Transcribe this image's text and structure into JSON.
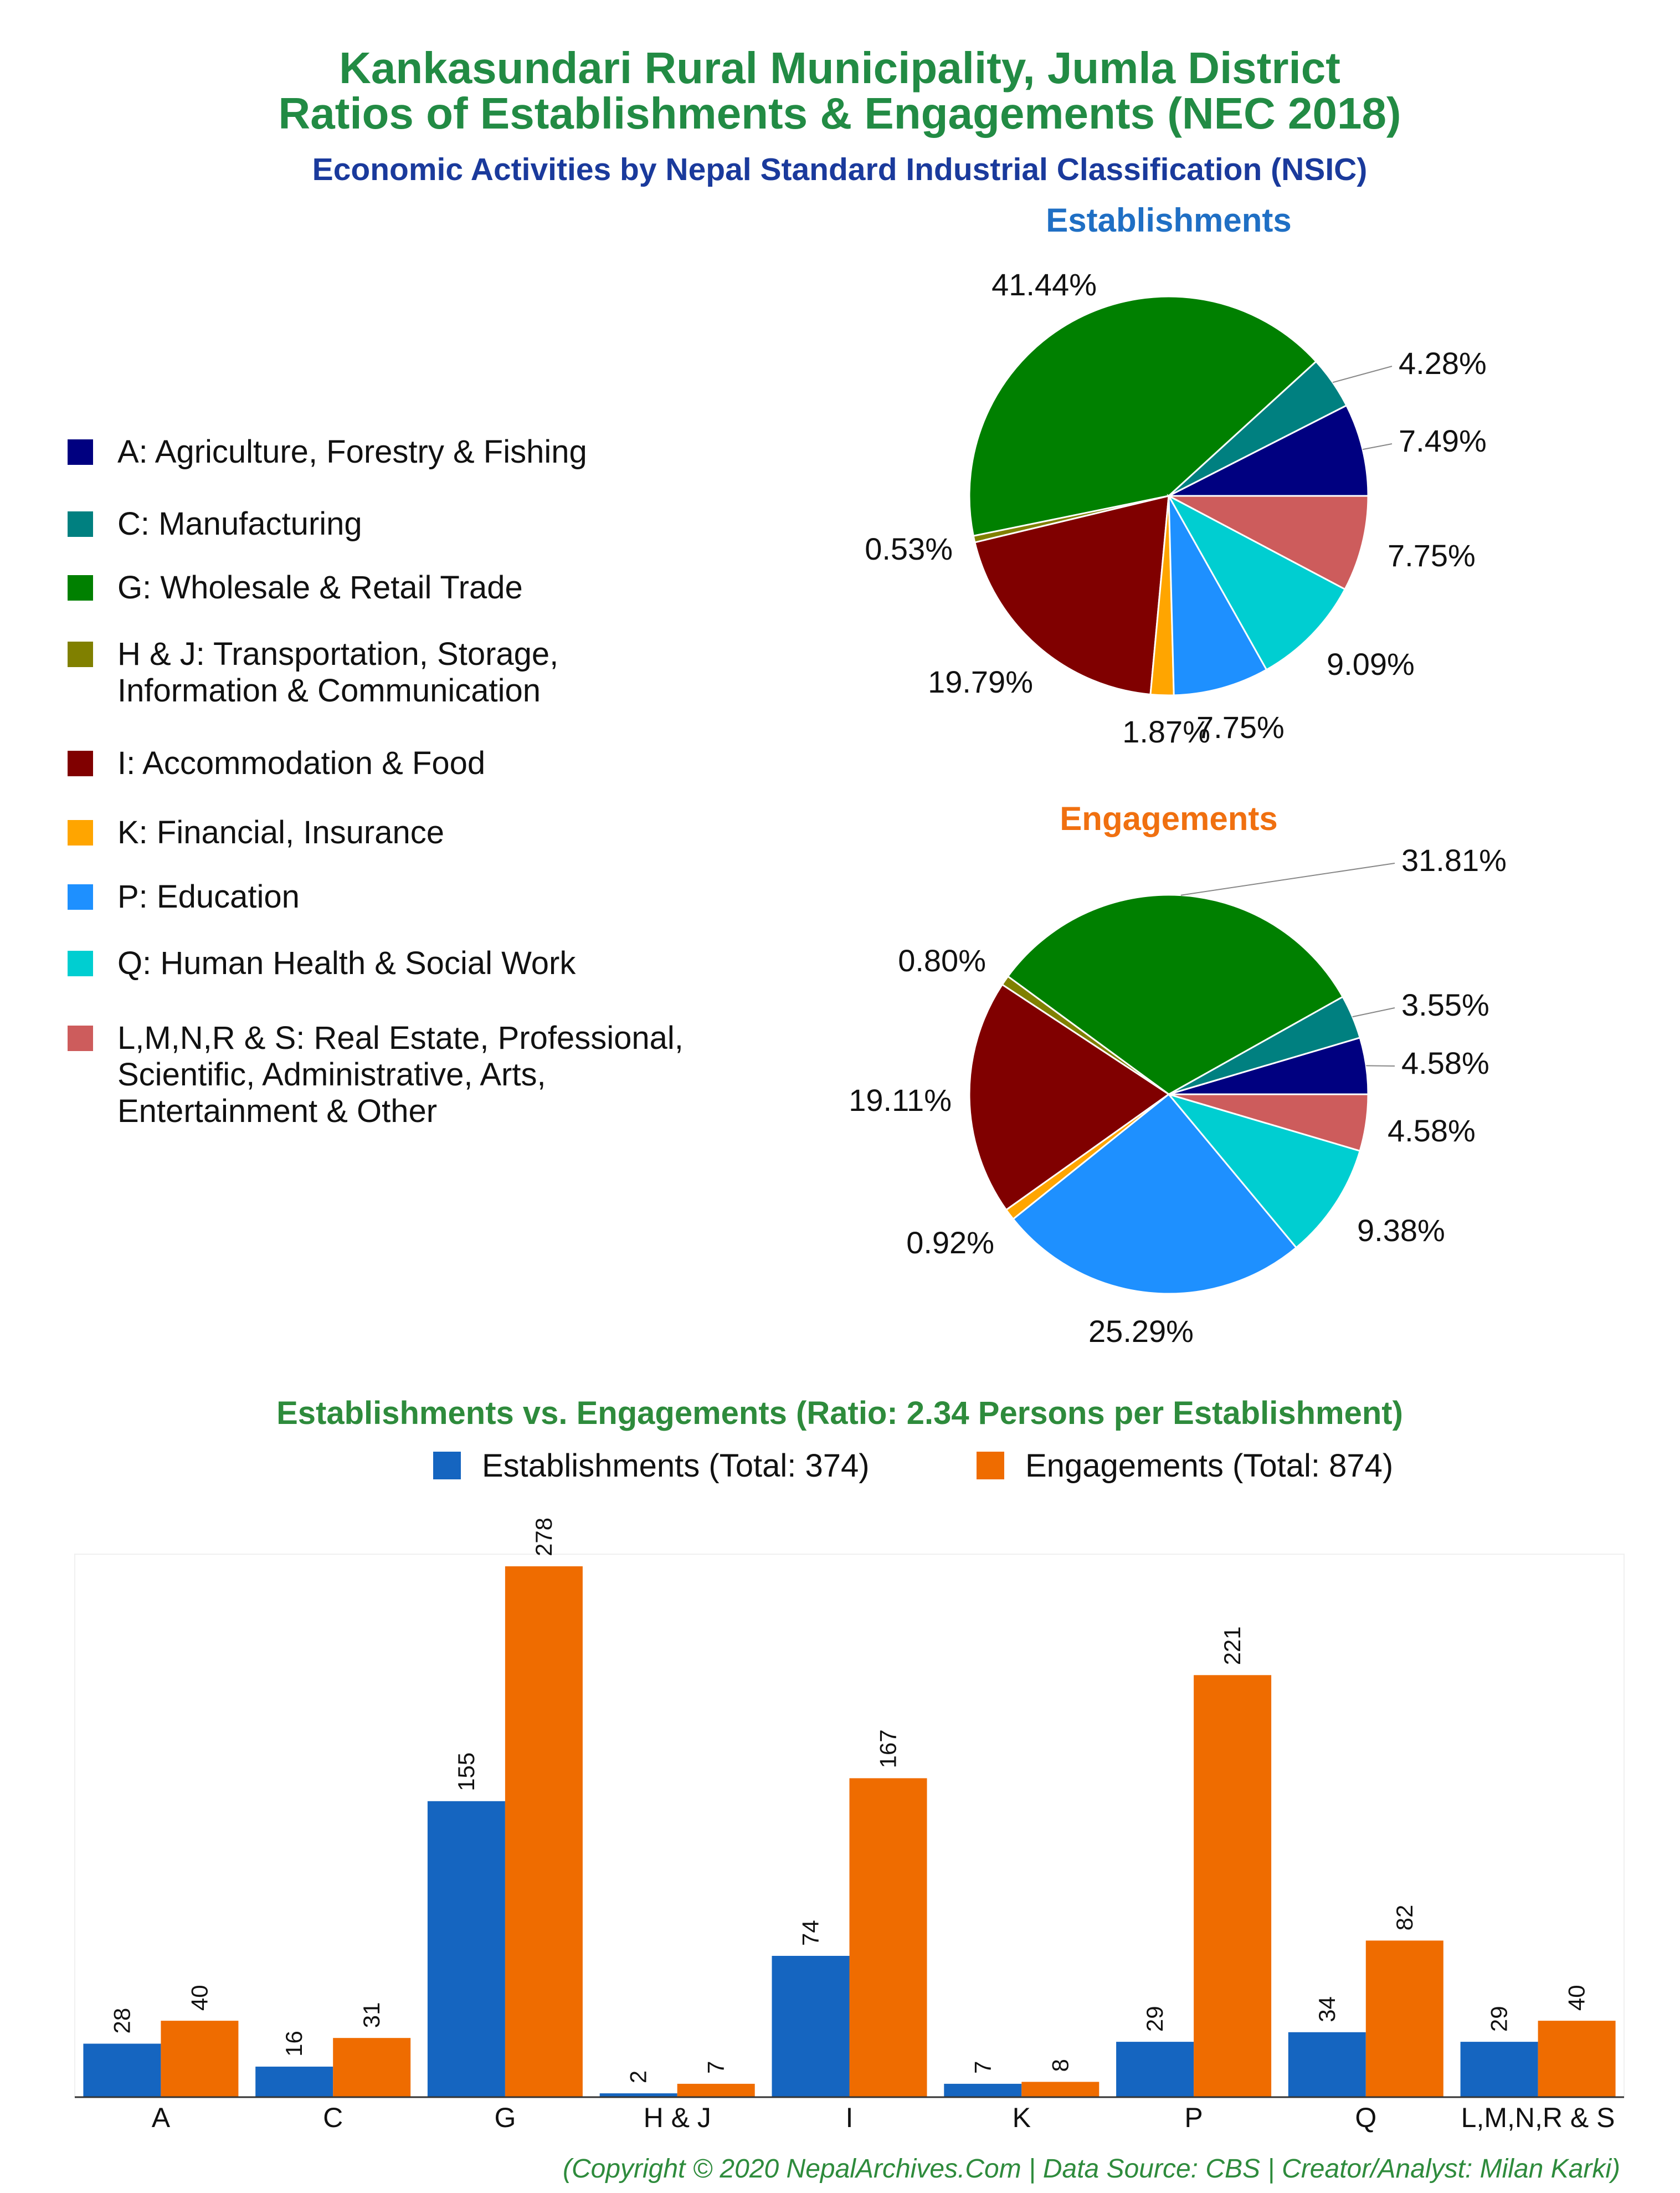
{
  "title": {
    "line1": "Kankasundari Rural Municipality, Jumla District",
    "line2": "Ratios of Establishments & Engagements (NEC 2018)",
    "subtitle": "Economic Activities by Nepal Standard Industrial Classification (NSIC)"
  },
  "legend": [
    {
      "lines": [
        "A: Agriculture, Forestry & Fishing"
      ],
      "color": "#000080"
    },
    {
      "lines": [
        "C: Manufacturing"
      ],
      "color": "#008080"
    },
    {
      "lines": [
        "G: Wholesale & Retail Trade"
      ],
      "color": "#008000"
    },
    {
      "lines": [
        "H & J: Transportation, Storage,",
        "Information & Communication"
      ],
      "color": "#808000"
    },
    {
      "lines": [
        "I: Accommodation & Food"
      ],
      "color": "#800000"
    },
    {
      "lines": [
        "K: Financial, Insurance"
      ],
      "color": "#ffa500"
    },
    {
      "lines": [
        "P: Education"
      ],
      "color": "#1e90ff"
    },
    {
      "lines": [
        "Q: Human Health & Social Work"
      ],
      "color": "#00ced1"
    },
    {
      "lines": [
        "L,M,N,R & S: Real Estate, Professional,",
        "Scientific, Administrative, Arts,",
        "Entertainment & Other"
      ],
      "color": "#cd5c5c"
    }
  ],
  "chart_data": [
    {
      "type": "pie",
      "title": "Establishments",
      "categories": [
        "A",
        "C",
        "G",
        "H & J",
        "I",
        "K",
        "P",
        "Q",
        "L,M,N,R & S"
      ],
      "values": [
        7.49,
        4.28,
        41.44,
        0.53,
        19.79,
        1.87,
        7.75,
        9.09,
        7.75
      ],
      "labels": [
        "7.49%",
        "4.28%",
        "41.44%",
        "0.53%",
        "19.79%",
        "1.87%",
        "7.75%",
        "9.09%",
        "7.75%"
      ]
    },
    {
      "type": "pie",
      "title": "Engagements",
      "categories": [
        "A",
        "C",
        "G",
        "H & J",
        "I",
        "K",
        "P",
        "Q",
        "L,M,N,R & S"
      ],
      "values": [
        4.58,
        3.55,
        31.81,
        0.8,
        19.11,
        0.92,
        25.29,
        9.38,
        4.58
      ],
      "labels": [
        "4.58%",
        "3.55%",
        "31.81%",
        "0.80%",
        "19.11%",
        "0.92%",
        "25.29%",
        "9.38%",
        "4.58%"
      ]
    },
    {
      "type": "bar",
      "title": "Establishments vs. Engagements (Ratio: 2.34 Persons per Establishment)",
      "categories": [
        "A",
        "C",
        "G",
        "H & J",
        "I",
        "K",
        "P",
        "Q",
        "L,M,N,R & S"
      ],
      "series": [
        {
          "name": "Establishments (Total: 374)",
          "color": "#1565c0",
          "values": [
            28,
            16,
            155,
            2,
            74,
            7,
            29,
            34,
            29
          ]
        },
        {
          "name": "Engagements (Total: 874)",
          "color": "#ef6c00",
          "values": [
            40,
            31,
            278,
            7,
            167,
            8,
            221,
            82,
            40
          ]
        }
      ],
      "ylim": [
        0,
        280
      ],
      "legend_position": "top"
    }
  ],
  "footer": "(Copyright © 2020 NepalArchives.Com | Data Source: CBS | Creator/Analyst: Milan Karki)"
}
